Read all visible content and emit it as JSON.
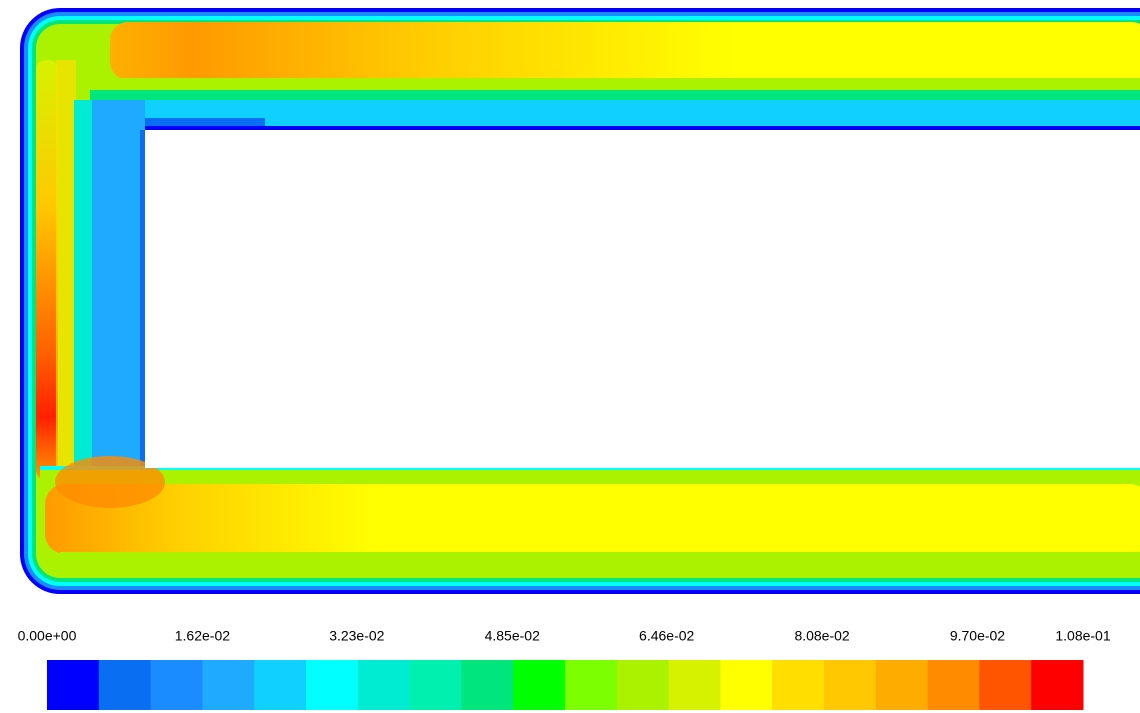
{
  "chart_data": {
    "type": "contour",
    "colorbar_lim": [
      0,
      0.108
    ],
    "colorbar_ticks": [
      {
        "value": 0,
        "label": "0.00e+00"
      },
      {
        "value": 0.0162,
        "label": "1.62e-02"
      },
      {
        "value": 0.0323,
        "label": "3.23e-02"
      },
      {
        "value": 0.0485,
        "label": "4.85e-02"
      },
      {
        "value": 0.0646,
        "label": "6.46e-02"
      },
      {
        "value": 0.0808,
        "label": "8.08e-02"
      },
      {
        "value": 0.097,
        "label": "9.70e-02"
      },
      {
        "value": 0.108,
        "label": "1.08e-01"
      }
    ],
    "colors": [
      "#0000ff",
      "#0a6ef2",
      "#1a8cff",
      "#1eaaff",
      "#10d0ff",
      "#00ffff",
      "#00ecd2",
      "#00f0b0",
      "#00e67c",
      "#00ff00",
      "#7cff00",
      "#aaf200",
      "#d6f200",
      "#ffff00",
      "#ffde00",
      "#ffc800",
      "#ffac00",
      "#ff8c00",
      "#ff5400",
      "#ff0000"
    ]
  }
}
